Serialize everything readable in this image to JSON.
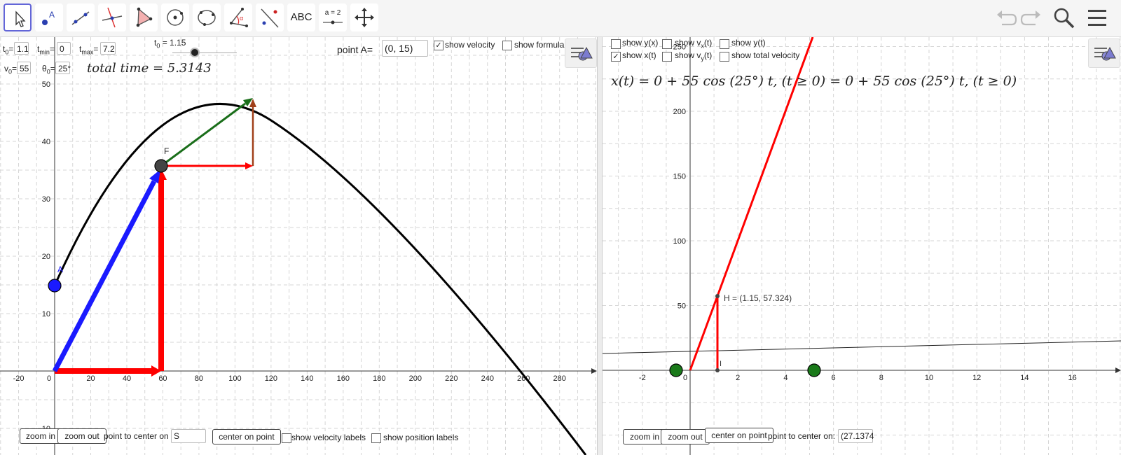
{
  "toolbar": {
    "tools": [
      {
        "name": "move-tool",
        "selected": true
      },
      {
        "name": "point-tool"
      },
      {
        "name": "line-tool"
      },
      {
        "name": "perpendicular-line-tool"
      },
      {
        "name": "polygon-tool"
      },
      {
        "name": "circle-center-tool"
      },
      {
        "name": "circle-three-points-tool"
      },
      {
        "name": "angle-tool"
      },
      {
        "name": "reflect-tool"
      },
      {
        "name": "text-tool",
        "label": "ABC"
      },
      {
        "name": "slider-tool",
        "label": "a = 2"
      },
      {
        "name": "move-graphics-view-tool"
      }
    ],
    "right_icons": [
      "undo-icon",
      "redo-icon",
      "search-icon",
      "menu-icon"
    ]
  },
  "left": {
    "inputs": {
      "t0_label": "t",
      "t0_sub": "0",
      "t0_value": "1.1",
      "tmin_label": "t",
      "tmin_sub": "min",
      "tmin_value": "0",
      "tmax_label": "t",
      "tmax_sub": "max",
      "tmax_value": "7.2",
      "v0_label": "v",
      "v0_sub": "0",
      "v0_value": "55",
      "theta_label": "θ",
      "theta_sub": "0",
      "theta_value": "25°"
    },
    "slider": {
      "label": "t",
      "label_sub": "0",
      "label_value": " = 1.15",
      "level": 0.35
    },
    "total_time": "total time = 5.3143",
    "point_a_label": "point A=",
    "point_a_value": "(0, 15)",
    "show_velocity": {
      "label": "show velocity",
      "checked": true
    },
    "show_formula": {
      "label": "show formula",
      "checked": false
    },
    "buttons": {
      "zoom_in": "zoom in",
      "zoom_out": "zoom out",
      "center_on_point": "center on point"
    },
    "point_to_center_label": "point to center on",
    "point_to_center_value": "S",
    "show_velocity_labels": {
      "label": "show velocity labels",
      "checked": false
    },
    "show_position_labels": {
      "label": "show position labels",
      "checked": false
    },
    "point_labels": {
      "A": "A",
      "F": "F"
    },
    "axes": {
      "x_ticks": [
        -20,
        0,
        20,
        40,
        60,
        80,
        100,
        120,
        140,
        160,
        180,
        200,
        220,
        240,
        260,
        280
      ],
      "y_ticks": [
        10,
        20,
        30,
        40,
        50
      ],
      "extra_y_tick": "-10"
    }
  },
  "right": {
    "checkboxes": [
      {
        "name": "show-y-x",
        "label": "show y(x)",
        "checked": false
      },
      {
        "name": "show-vx-t",
        "label_main": "show v",
        "label_sub": "x",
        "label_tail": "(t)",
        "checked": false
      },
      {
        "name": "show-y-t",
        "label": "show y(t)",
        "checked": false
      },
      {
        "name": "show-x-t",
        "label": "show x(t)",
        "checked": true
      },
      {
        "name": "show-vy-t",
        "label_main": "show v",
        "label_sub": "y",
        "label_tail": "(t)",
        "checked": false
      },
      {
        "name": "show-total-velocity",
        "label": "show total velocity",
        "checked": false
      }
    ],
    "formula": "x(t) = 0 + 55  cos (25°)  t,     (t ≥ 0) = 0 + 55  cos (25°)  t,     (t ≥ 0)",
    "point_h_label": "H = (1.15, 57.324)",
    "point_i_label": "I",
    "buttons": {
      "zoom_in": "zoom in",
      "zoom_out": "zoom out",
      "center_on_point": "center on point"
    },
    "point_to_center_label": "point to center on:",
    "point_to_center_value": "(27.1374",
    "axes": {
      "x_ticks": [
        -2,
        0,
        2,
        4,
        6,
        8,
        10,
        12,
        14,
        16
      ],
      "y_ticks": [
        50,
        100,
        150,
        200,
        250
      ]
    }
  },
  "colors": {
    "accent": "#6366d8",
    "red": "#ff0000",
    "blue": "#1a1aff",
    "green": "#1a6e1a",
    "brown": "#a0401a",
    "grid": "#d6d6d6"
  }
}
